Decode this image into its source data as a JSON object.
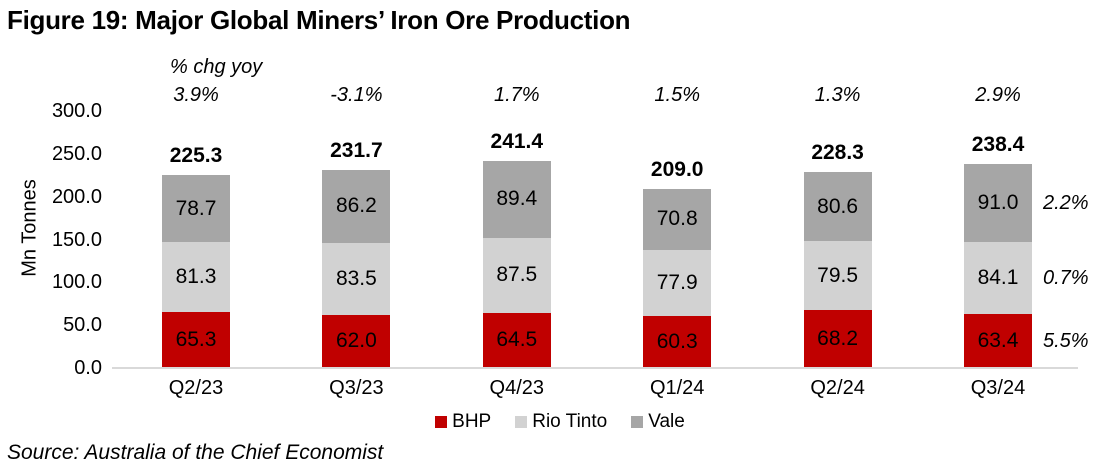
{
  "title": "Figure 19: Major Global Miners’ Iron Ore Production",
  "pct_header": "% chg yoy",
  "source": "Source: Australia of the Chief Economist",
  "colors": {
    "bhp_red": "#C00000",
    "rio_tinto_gray": "#D2D2D2",
    "vale_gray": "#A6A6A6",
    "axis_line": "#D9D9D9",
    "text": "#000000"
  },
  "chart_data": {
    "type": "bar",
    "stacked": true,
    "title": "Figure 19: Major Global Miners’ Iron Ore Production",
    "xlabel": "",
    "ylabel": "Mn Tonnes",
    "ylim": [
      0,
      300
    ],
    "yticks": [
      0,
      50,
      100,
      150,
      200,
      250,
      300
    ],
    "grid": false,
    "legend_position": "bottom",
    "categories": [
      "Q2/23",
      "Q3/23",
      "Q4/23",
      "Q1/24",
      "Q2/24",
      "Q3/24"
    ],
    "series": [
      {
        "name": "BHP",
        "color": "#C00000",
        "values": [
          65.3,
          62.0,
          64.5,
          60.3,
          68.2,
          63.4
        ]
      },
      {
        "name": "Rio Tinto",
        "color": "#D2D2D2",
        "values": [
          81.3,
          83.5,
          87.5,
          77.9,
          79.5,
          84.1
        ]
      },
      {
        "name": "Vale",
        "color": "#A6A6A6",
        "values": [
          78.7,
          86.2,
          89.4,
          70.8,
          80.6,
          91.0
        ]
      }
    ],
    "totals": [
      225.3,
      231.7,
      241.4,
      209.0,
      228.3,
      238.4
    ],
    "pct_chg_yoy": [
      "3.9%",
      "-3.1%",
      "1.7%",
      "1.5%",
      "1.3%",
      "2.9%"
    ],
    "last_bar_segment_pct_yoy": [
      "5.5%",
      "0.7%",
      "2.2%"
    ]
  }
}
